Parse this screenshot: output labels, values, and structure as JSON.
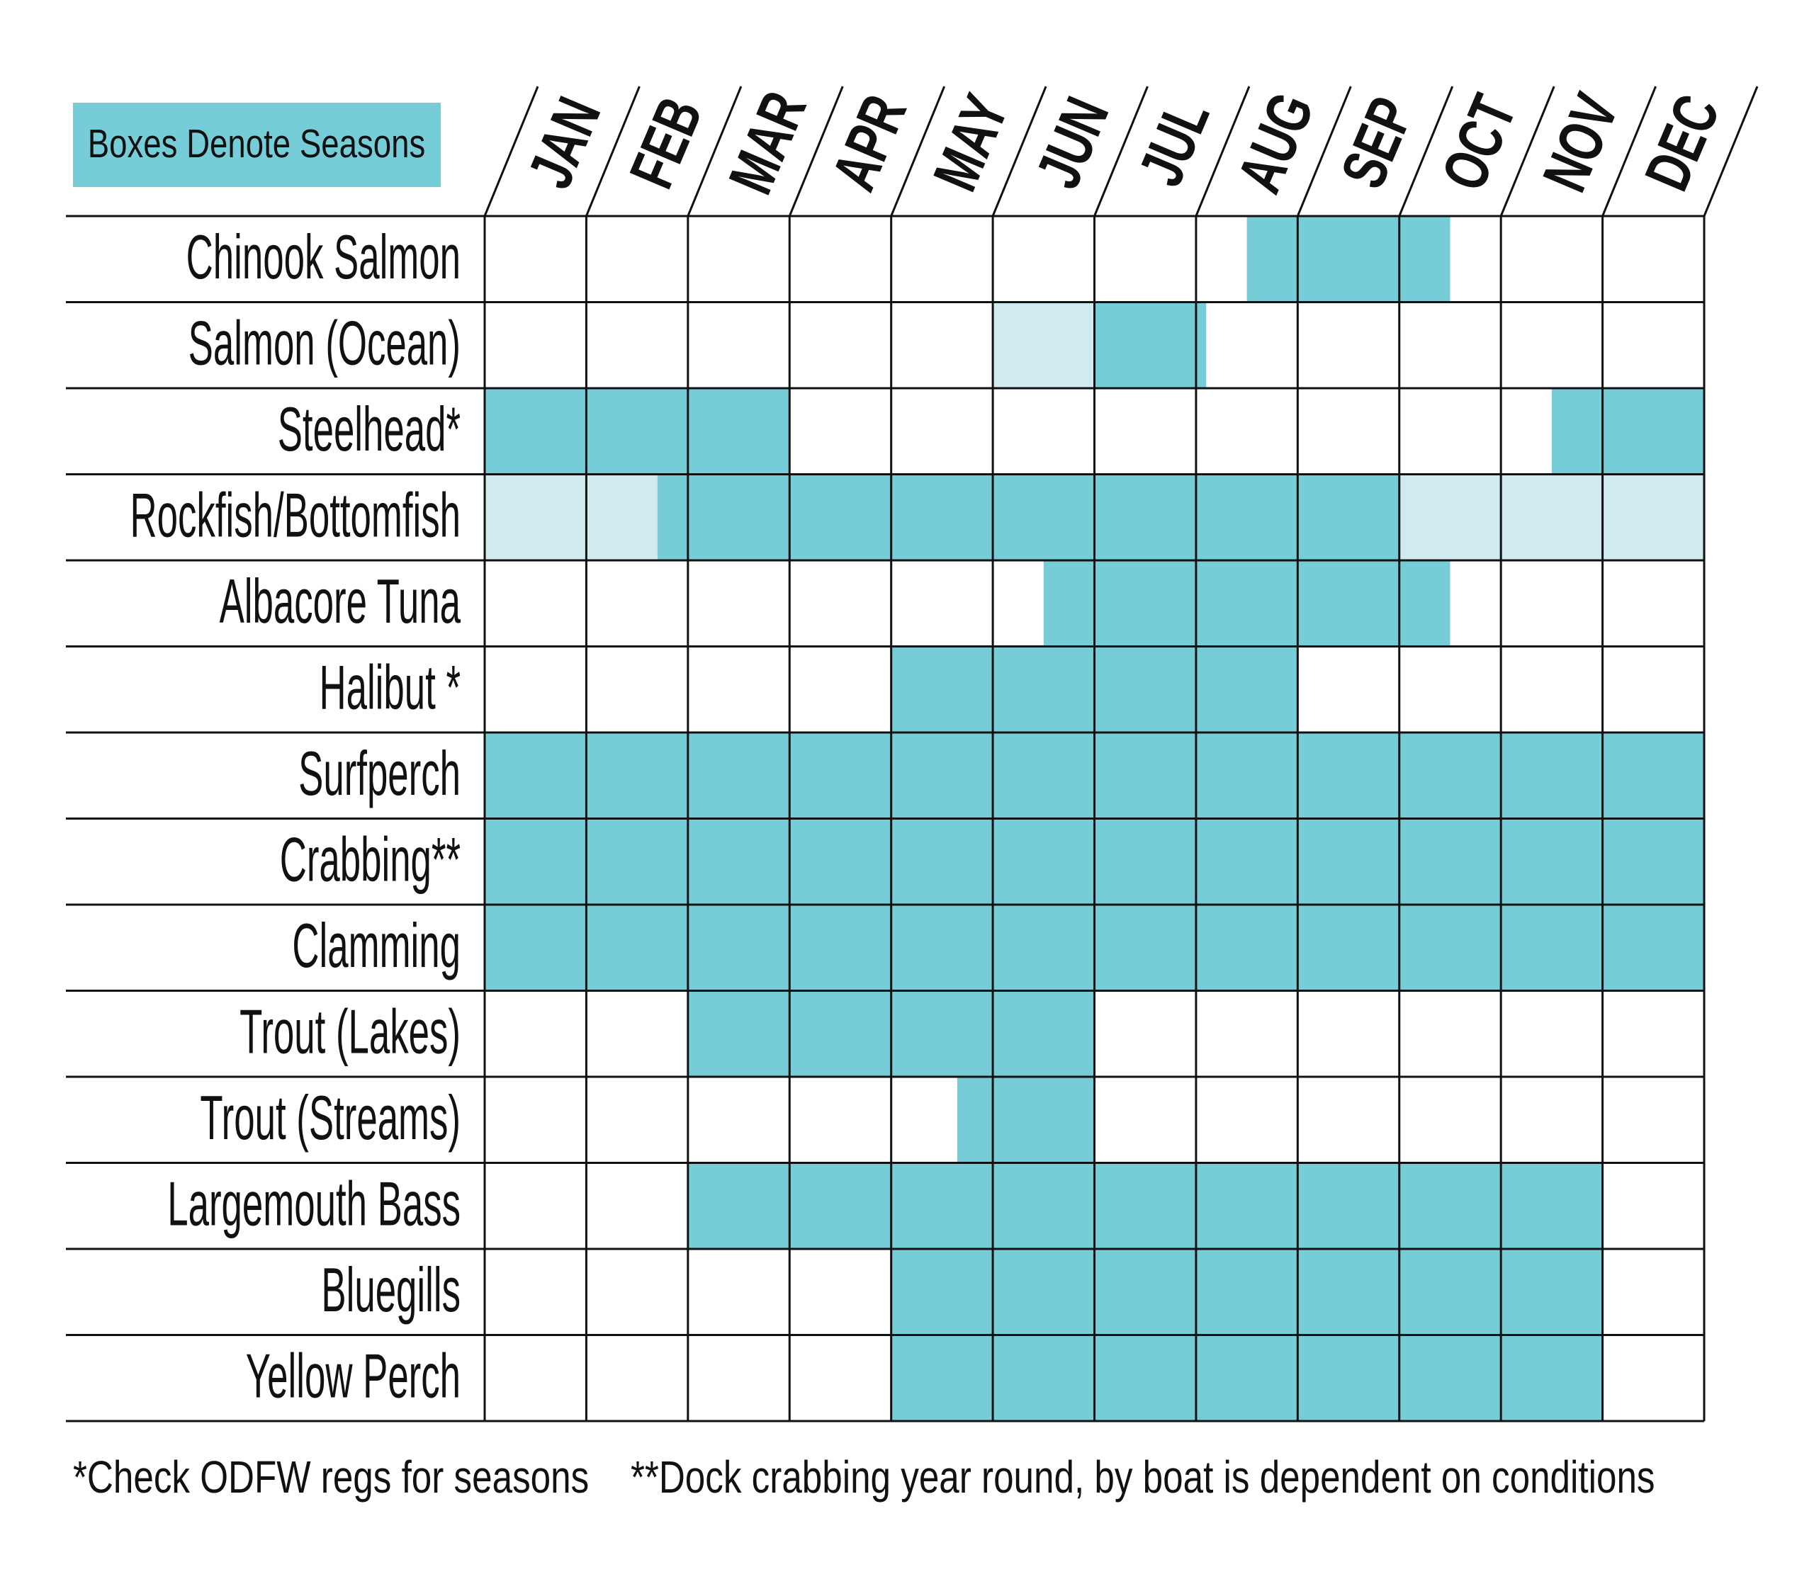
{
  "chart_data": {
    "type": "timeline",
    "legend": "Boxes Denote Seasons",
    "legend_color": "#76cdd8",
    "categories": [
      "JAN",
      "FEB",
      "MAR",
      "APR",
      "MAY",
      "JUN",
      "JUL",
      "AUG",
      "SEP",
      "OCT",
      "NOV",
      "DEC"
    ],
    "rows": [
      {
        "name": "Chinook Salmon",
        "segments": [
          {
            "start": 7.5,
            "end": 9.5,
            "color": "#76cdd8"
          }
        ]
      },
      {
        "name": "Salmon (Ocean)",
        "segments": [
          {
            "start": 5,
            "end": 6,
            "color": "#cfebf0"
          },
          {
            "start": 6,
            "end": 7.1,
            "color": "#76cdd8"
          }
        ]
      },
      {
        "name": "Steelhead*",
        "segments": [
          {
            "start": 0,
            "end": 3,
            "color": "#76cdd8"
          },
          {
            "start": 10.5,
            "end": 12,
            "color": "#76cdd8"
          }
        ]
      },
      {
        "name": "Rockfish/Bottomfish",
        "segments": [
          {
            "start": 0,
            "end": 1.7,
            "color": "#cfebf0"
          },
          {
            "start": 1.7,
            "end": 9,
            "color": "#76cdd8"
          },
          {
            "start": 9,
            "end": 12,
            "color": "#cfebf0"
          }
        ]
      },
      {
        "name": "Albacore Tuna",
        "segments": [
          {
            "start": 5.5,
            "end": 9.5,
            "color": "#76cdd8"
          }
        ]
      },
      {
        "name": "Halibut *",
        "segments": [
          {
            "start": 4,
            "end": 8,
            "color": "#76cdd8"
          }
        ]
      },
      {
        "name": "Surfperch",
        "segments": [
          {
            "start": 0,
            "end": 12,
            "color": "#76cdd8"
          }
        ]
      },
      {
        "name": "Crabbing**",
        "segments": [
          {
            "start": 0,
            "end": 12,
            "color": "#76cdd8"
          }
        ]
      },
      {
        "name": "Clamming",
        "segments": [
          {
            "start": 0,
            "end": 12,
            "color": "#76cdd8"
          }
        ]
      },
      {
        "name": "Trout (Lakes)",
        "segments": [
          {
            "start": 2,
            "end": 6,
            "color": "#76cdd8"
          }
        ]
      },
      {
        "name": "Trout (Streams)",
        "segments": [
          {
            "start": 4.65,
            "end": 6,
            "color": "#76cdd8"
          }
        ]
      },
      {
        "name": "Largemouth Bass",
        "segments": [
          {
            "start": 2,
            "end": 11,
            "color": "#76cdd8"
          }
        ]
      },
      {
        "name": "Bluegills",
        "segments": [
          {
            "start": 4,
            "end": 11,
            "color": "#76cdd8"
          }
        ]
      },
      {
        "name": "Yellow Perch",
        "segments": [
          {
            "start": 4,
            "end": 11,
            "color": "#76cdd8"
          }
        ]
      }
    ],
    "footnotes": [
      "*Check ODFW regs for seasons",
      "**Dock crabbing year round, by boat is dependent on conditions"
    ]
  }
}
